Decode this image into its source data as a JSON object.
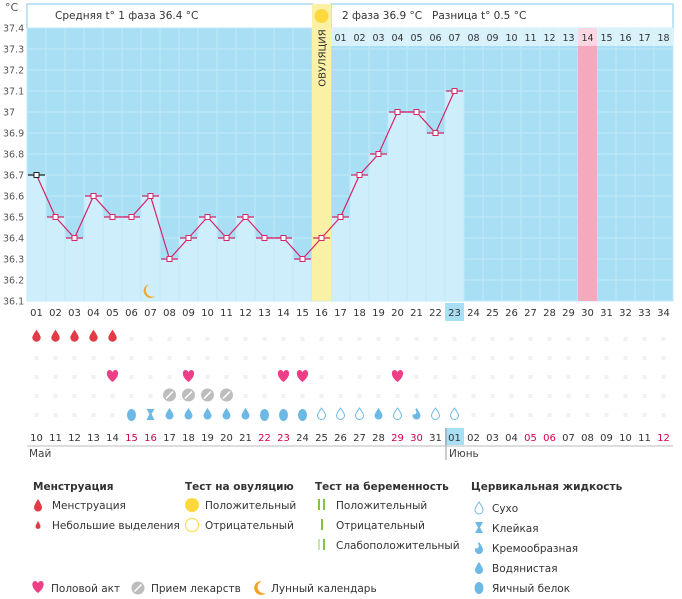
{
  "header": {
    "unit": "°C",
    "phase1": "Средняя t° 1 фаза 36.4 °C",
    "phase2": "2 фаза 36.9 °C",
    "diff": "Разница t° 0.5 °C",
    "ovulation": "ОВУЛЯЦИЯ"
  },
  "colors": {
    "chart_bg": "#a8dff4",
    "bar": "#cdeefa",
    "line": "#d6256a",
    "ovulation_band": "#fbf1a6",
    "highlight_day": "#f5a9bc",
    "blood": "#e23b45",
    "heart": "#ee3f86",
    "sun": "#ffd83d",
    "moon": "#f3a626",
    "drop": "#6cb9e6",
    "weekend": "#d6004f"
  },
  "chart_data": {
    "type": "line",
    "title": "",
    "ylabel": "°C",
    "ylim": [
      36.1,
      37.4
    ],
    "y_ticks": [
      "36.1",
      "36.2",
      "36.3",
      "36.4",
      "36.5",
      "36.6",
      "36.7",
      "36.8",
      "36.9",
      "37",
      "37.1",
      "37.2",
      "37.3",
      "37.4"
    ],
    "cycle_days": [
      "01",
      "02",
      "03",
      "04",
      "05",
      "06",
      "07",
      "08",
      "09",
      "10",
      "11",
      "12",
      "13",
      "14",
      "15",
      "16",
      "17",
      "18",
      "19",
      "20",
      "21",
      "22",
      "23",
      "24",
      "25",
      "26",
      "27",
      "28",
      "29",
      "30",
      "31",
      "32",
      "33",
      "34"
    ],
    "current_day": 23,
    "ovulation_day": 16,
    "post_ovulation_days": [
      "01",
      "02",
      "03",
      "04",
      "05",
      "06",
      "07",
      "08",
      "09",
      "10",
      "11",
      "12",
      "13",
      "14",
      "15",
      "16",
      "17",
      "18"
    ],
    "highlight_post_day": 14,
    "series": [
      {
        "name": "Базальная температура",
        "values": [
          36.7,
          36.5,
          36.4,
          36.6,
          36.5,
          36.5,
          36.6,
          36.3,
          36.4,
          36.5,
          36.4,
          36.5,
          36.4,
          36.4,
          36.3,
          36.4,
          36.5,
          36.7,
          36.8,
          37.0,
          37.0,
          36.9,
          37.1
        ]
      }
    ]
  },
  "calendar": {
    "dates": [
      "10",
      "11",
      "12",
      "13",
      "14",
      "15",
      "16",
      "17",
      "18",
      "19",
      "20",
      "21",
      "22",
      "23",
      "24",
      "25",
      "26",
      "27",
      "28",
      "29",
      "30",
      "31",
      "01",
      "02",
      "03",
      "04",
      "05",
      "06",
      "07",
      "08",
      "09",
      "10",
      "11",
      "12"
    ],
    "weekend_indices": [
      5,
      6,
      12,
      13,
      19,
      20,
      26,
      27,
      33
    ],
    "month1": "Май",
    "month2": "Июнь"
  },
  "markers": {
    "menstruation_days": [
      1,
      2,
      3,
      4,
      5
    ],
    "moon_day": 7,
    "heart_days": [
      5,
      9,
      14,
      15,
      20
    ],
    "medication_days": [
      8,
      9,
      10,
      11
    ],
    "cervical": [
      {
        "day": 6,
        "kind": "egg"
      },
      {
        "day": 7,
        "kind": "sticky"
      },
      {
        "day": 8,
        "kind": "watery"
      },
      {
        "day": 9,
        "kind": "watery"
      },
      {
        "day": 10,
        "kind": "watery"
      },
      {
        "day": 11,
        "kind": "watery"
      },
      {
        "day": 12,
        "kind": "watery"
      },
      {
        "day": 13,
        "kind": "egg"
      },
      {
        "day": 14,
        "kind": "egg"
      },
      {
        "day": 15,
        "kind": "egg"
      },
      {
        "day": 16,
        "kind": "dry"
      },
      {
        "day": 17,
        "kind": "dry"
      },
      {
        "day": 18,
        "kind": "dry"
      },
      {
        "day": 19,
        "kind": "watery"
      },
      {
        "day": 20,
        "kind": "dry"
      },
      {
        "day": 21,
        "kind": "creamy"
      },
      {
        "day": 22,
        "kind": "dry"
      },
      {
        "day": 23,
        "kind": "dry"
      }
    ]
  },
  "legend": {
    "menstruation": {
      "title": "Менструация",
      "items": [
        "Менструация",
        "Небольшие выделения"
      ]
    },
    "ovulation_test": {
      "title": "Тест на овуляцию",
      "items": [
        "Положительный",
        "Отрицательный"
      ]
    },
    "pregnancy_test": {
      "title": "Тест на беременность",
      "items": [
        "Положительный",
        "Отрицательный",
        "Слабоположительный"
      ]
    },
    "cervical": {
      "title": "Цервикальная жидкость",
      "items": [
        "Сухо",
        "Клейкая",
        "Кремообразная",
        "Водянистая",
        "Яичный белок"
      ]
    },
    "bottom": [
      "Половой акт",
      "Прием лекарств",
      "Лунный календарь"
    ]
  }
}
